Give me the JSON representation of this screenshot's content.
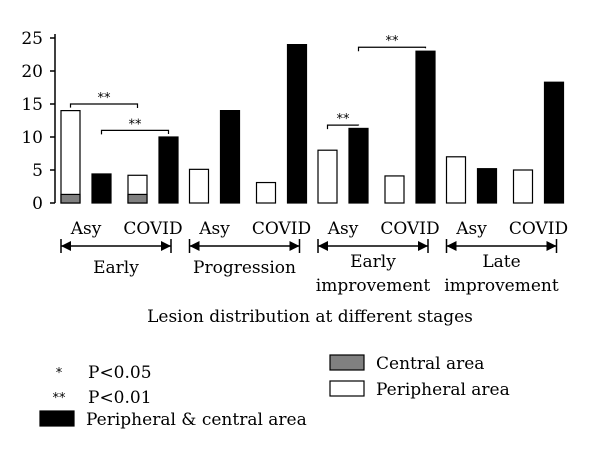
{
  "chart_data": {
    "type": "bar",
    "xlabel": "Lesion distribution at different stages",
    "ylim": [
      0,
      25
    ],
    "yticks": [
      0,
      5,
      10,
      15,
      20,
      25
    ],
    "grid": false,
    "legend_placement": "bottom",
    "categories": [
      "Asy",
      "COVID",
      "Asy",
      "COVID",
      "Asy",
      "COVID",
      "Asy",
      "COVID"
    ],
    "groups": [
      {
        "label": "Early",
        "categories": [
          0,
          1
        ]
      },
      {
        "label": "Progression",
        "categories": [
          2,
          3
        ]
      },
      {
        "label": "Early\nimprovement",
        "categories": [
          4,
          5
        ]
      },
      {
        "label": "Late\nimprovement",
        "categories": [
          6,
          7
        ]
      }
    ],
    "series": [
      {
        "name": "Peripheral area",
        "color": "#ffffff",
        "values": [
          14,
          4.2,
          5.1,
          3.1,
          8,
          4.1,
          7,
          5
        ]
      },
      {
        "name": "Central area",
        "color": "#808080",
        "values": [
          1.3,
          1.3,
          0,
          0,
          0,
          0,
          0,
          0
        ]
      },
      {
        "name": "Peripheral & central area",
        "color": "#000000",
        "values": [
          4.4,
          10,
          14,
          24,
          11.3,
          23,
          5.2,
          18.3
        ]
      }
    ],
    "significance": [
      {
        "label": "**",
        "from": [
          0,
          "Peripheral area"
        ],
        "to": [
          1,
          "Peripheral area"
        ],
        "level": 15
      },
      {
        "label": "**",
        "from": [
          0,
          "Peripheral & central area"
        ],
        "to": [
          1,
          "Peripheral & central area"
        ],
        "level": 11
      },
      {
        "label": "**",
        "from": [
          4,
          "Peripheral area"
        ],
        "to": [
          4,
          "Peripheral & central area"
        ],
        "level": 11.8
      },
      {
        "label": "**",
        "from": [
          4,
          "Peripheral & central area"
        ],
        "to": [
          5,
          "Peripheral & central area"
        ],
        "level": 23.6
      }
    ],
    "legend": {
      "significance": [
        {
          "symbol": "*",
          "text": "P<0.05"
        },
        {
          "symbol": "**",
          "text": "P<0.01"
        }
      ]
    }
  }
}
